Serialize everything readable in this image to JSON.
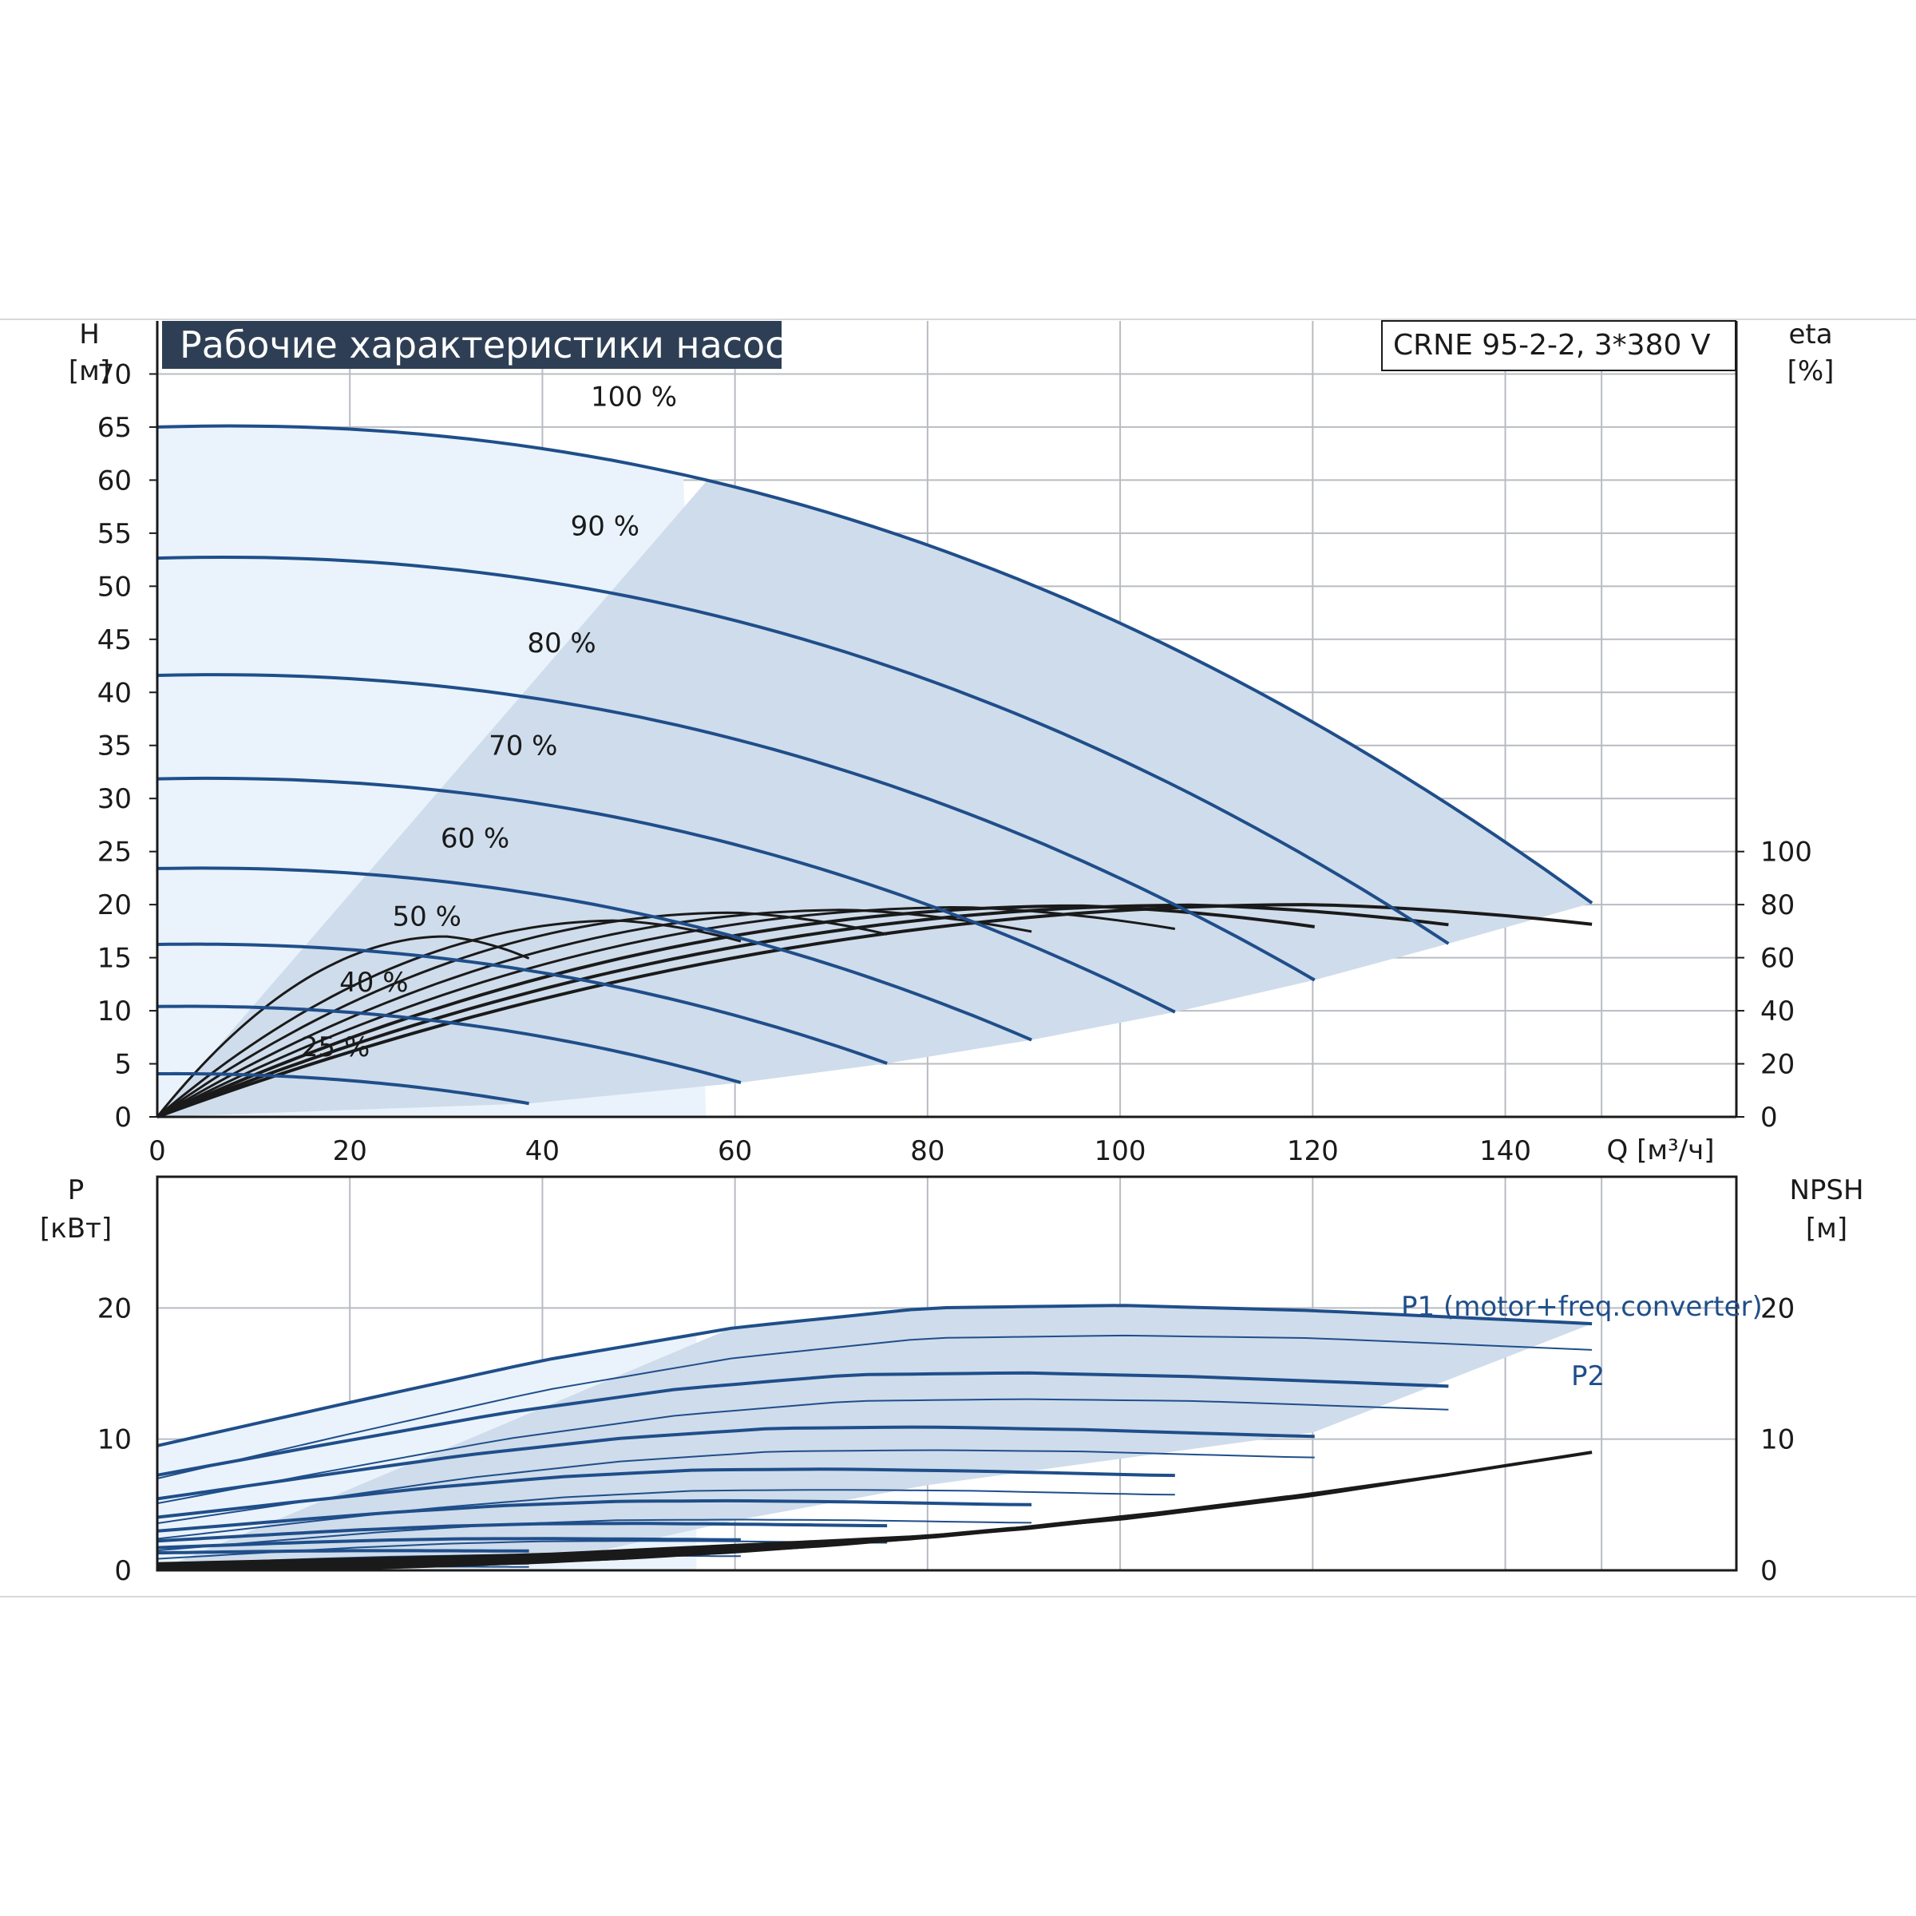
{
  "chart_title": "Рабочие характеристики насоса",
  "model": "CRNE 95-2-2, 3*380 V",
  "colors": {
    "envelope": "#cfdceb",
    "envelope_light": "#eaf3fb",
    "curve_blue": "#1f4e8a",
    "curve_black": "#1a1a1a",
    "grid": "#b8bcc2",
    "title_bg": "#2e3f55"
  },
  "chart_data": [
    {
      "type": "line",
      "panel": "head",
      "title": "Рабочие характеристики насоса",
      "xlabel": "Q [м³/ч]",
      "ylabel_left_top": "H",
      "ylabel_left_bottom": "[м]",
      "ylabel_right_top": "eta",
      "ylabel_right_bottom": "[%]",
      "xlim": [
        0,
        164
      ],
      "ylim": [
        0,
        75
      ],
      "x_ticks": [
        0,
        20,
        40,
        60,
        80,
        100,
        120,
        140
      ],
      "y_ticks": [
        0,
        5,
        10,
        15,
        20,
        25,
        30,
        35,
        40,
        45,
        50,
        55,
        60,
        65,
        70
      ],
      "eta_ticks": [
        0,
        20,
        40,
        60,
        80,
        100
      ],
      "eta_tick_labels": [
        "0",
        "20",
        "40",
        "60",
        "80",
        "100"
      ],
      "grid": true,
      "speed_labels": [
        {
          "text": "100 %",
          "q": 49.5,
          "h": 67
        },
        {
          "text": "90 %",
          "q": 46.5,
          "h": 54.8
        },
        {
          "text": "80 %",
          "q": 42,
          "h": 43.8
        },
        {
          "text": "70 %",
          "q": 38,
          "h": 34.1
        },
        {
          "text": "60 %",
          "q": 33,
          "h": 25.4
        },
        {
          "text": "50 %",
          "q": 28,
          "h": 18
        },
        {
          "text": "40 %",
          "q": 22.5,
          "h": 11.8
        },
        {
          "text": "25 %",
          "q": 18.5,
          "h": 5.7
        }
      ],
      "series": [
        {
          "speed": 1.0,
          "h0": 65,
          "qmax": 149,
          "eta_peak": 80,
          "q_bep": 120
        },
        {
          "speed": 0.9,
          "h0": 52.65,
          "qmax": 134.1,
          "eta_peak": 79.8,
          "q_bep": 108
        },
        {
          "speed": 0.8,
          "h0": 41.6,
          "qmax": 120.2,
          "eta_peak": 79.5,
          "q_bep": 96
        },
        {
          "speed": 0.7,
          "h0": 31.85,
          "qmax": 105.7,
          "eta_peak": 79,
          "q_bep": 84
        },
        {
          "speed": 0.6,
          "h0": 23.4,
          "qmax": 90.8,
          "eta_peak": 78,
          "q_bep": 72
        },
        {
          "speed": 0.5,
          "h0": 16.25,
          "qmax": 75.8,
          "eta_peak": 77,
          "q_bep": 60
        },
        {
          "speed": 0.4,
          "h0": 10.4,
          "qmax": 60.6,
          "eta_peak": 74,
          "q_bep": 48
        },
        {
          "speed": 0.25,
          "h0": 4.06,
          "qmax": 38.6,
          "eta_peak": 68,
          "q_bep": 30
        }
      ]
    },
    {
      "type": "line",
      "panel": "power",
      "ylabel_left_top": "P",
      "ylabel_left_bottom": "[кВт]",
      "ylabel_right_top": "NPSH",
      "ylabel_right_bottom": "[м]",
      "xlim": [
        0,
        164
      ],
      "ylim": [
        0,
        30
      ],
      "y_ticks": [
        0,
        10,
        20
      ],
      "npsh_ticks": [
        0,
        10,
        20
      ],
      "grid": true,
      "legend_p1": "P1 (motor+freq.converter)",
      "legend_p2": "P2",
      "p1_at_full_speed": [
        9.5,
        12.8,
        16.0,
        18.5,
        20.0,
        20.2,
        19.8,
        18.8
      ],
      "p2_at_full_speed": [
        7.0,
        10.4,
        13.7,
        16.2,
        17.7,
        17.9,
        17.7,
        16.8
      ],
      "p_q": [
        0,
        20,
        40,
        60,
        80,
        100,
        120,
        149
      ],
      "npsh_full_speed": {
        "q": [
          0,
          40,
          80,
          100,
          120,
          149
        ],
        "npsh": [
          0.5,
          1.2,
          2.6,
          3.9,
          5.7,
          9.0
        ]
      }
    }
  ]
}
